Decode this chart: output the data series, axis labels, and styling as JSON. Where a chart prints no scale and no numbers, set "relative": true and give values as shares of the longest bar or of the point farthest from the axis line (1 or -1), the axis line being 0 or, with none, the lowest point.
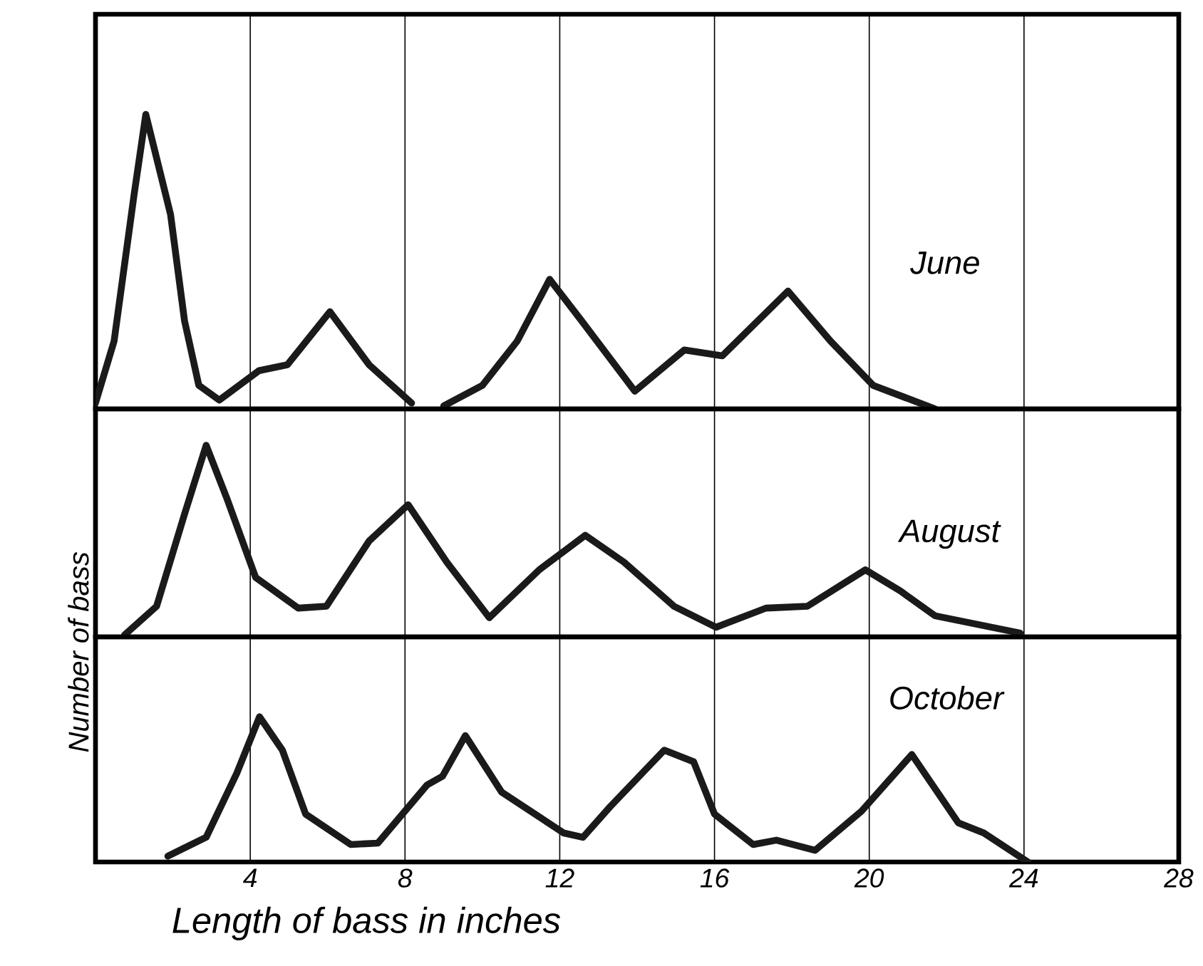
{
  "chart_data": [
    {
      "type": "line",
      "relative": true,
      "xlim": [
        0,
        28
      ],
      "xticks": [
        4,
        8,
        12,
        16,
        20,
        24,
        28
      ],
      "grid": "x",
      "tick_labels": false,
      "series": [
        {
          "name": "June",
          "color": "#1a1a1a",
          "x": [
            0,
            0.48,
            1.0,
            1.3,
            1.94,
            2.3,
            2.67,
            3.2,
            4.23,
            4.96,
            6.06,
            7.07,
            8.17,
            8.6,
            9.0,
            10.0,
            10.9,
            11.74,
            12.56,
            13.94,
            15.22,
            16.2,
            17.9,
            19.0,
            20.1,
            21.7
          ],
          "values": [
            0.02,
            0.23,
            0.73,
            1,
            0.66,
            0.3,
            0.08,
            0.03,
            0.13,
            0.15,
            0.33,
            0.15,
            0.02,
            null,
            0.01,
            0.08,
            0.23,
            0.44,
            0.3,
            0.06,
            0.2,
            0.18,
            0.4,
            0.23,
            0.08,
            0
          ]
        }
      ]
    },
    {
      "type": "line",
      "relative": true,
      "xlim": [
        0,
        28
      ],
      "xticks": [
        4,
        8,
        12,
        16,
        20,
        24,
        28
      ],
      "grid": "x",
      "tick_labels": false,
      "series": [
        {
          "name": "August",
          "color": "#1a1a1a",
          "x": [
            0.75,
            1.58,
            2.3,
            2.86,
            3.4,
            4.14,
            5.24,
            5.97,
            7.07,
            8.08,
            9.08,
            10.18,
            11.47,
            12.66,
            13.66,
            14.95,
            16.04,
            17.33,
            18.4,
            19.9,
            20.8,
            21.7,
            23.9
          ],
          "values": [
            0.01,
            0.16,
            0.64,
            1,
            0.72,
            0.31,
            0.15,
            0.16,
            0.5,
            0.69,
            0.39,
            0.1,
            0.35,
            0.53,
            0.39,
            0.16,
            0.05,
            0.15,
            0.16,
            0.35,
            0.24,
            0.11,
            0.02
          ]
        }
      ]
    },
    {
      "type": "line",
      "relative": true,
      "xlim": [
        0,
        28
      ],
      "xticks": [
        4,
        8,
        12,
        16,
        20,
        24,
        28
      ],
      "grid": "x",
      "tick_labels": "x",
      "xlabel": "Length of bass in inches",
      "ylabel": "Number of bass",
      "series": [
        {
          "name": "October",
          "color": "#1a1a1a",
          "x": [
            1.87,
            2.86,
            3.65,
            4.24,
            4.83,
            5.43,
            6.6,
            7.3,
            8.57,
            8.97,
            9.56,
            10.5,
            12.1,
            12.6,
            13.3,
            14.7,
            15.46,
            16.0,
            17.0,
            17.6,
            18.6,
            19.8,
            21.1,
            22.3,
            22.96,
            24.1
          ],
          "values": [
            0.04,
            0.17,
            0.61,
            1,
            0.77,
            0.33,
            0.12,
            0.13,
            0.53,
            0.59,
            0.87,
            0.48,
            0.2,
            0.17,
            0.38,
            0.77,
            0.69,
            0.33,
            0.12,
            0.15,
            0.08,
            0.35,
            0.74,
            0.27,
            0.2,
            0
          ]
        }
      ]
    }
  ]
}
